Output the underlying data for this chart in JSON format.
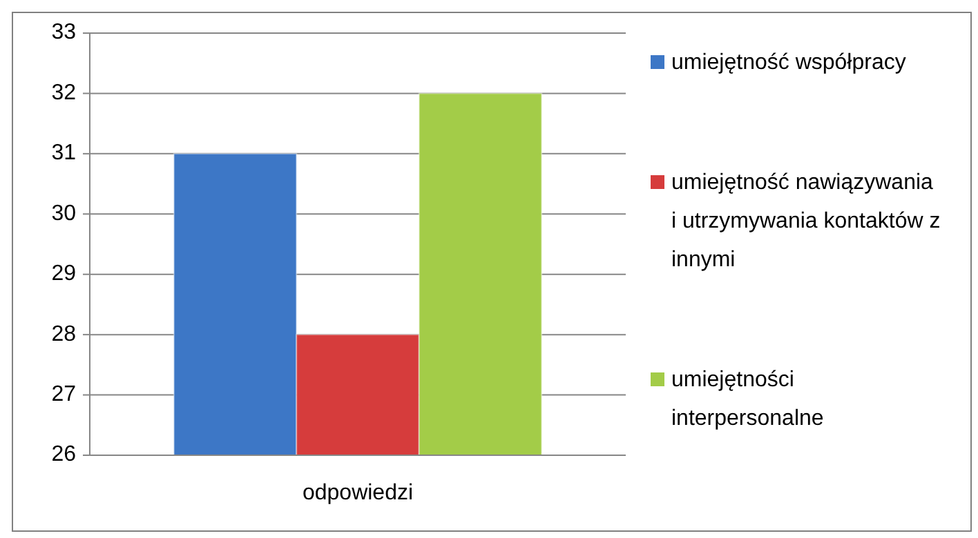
{
  "chart_data": {
    "type": "bar",
    "categories": [
      "odpowiedzi"
    ],
    "series": [
      {
        "name": "umiejętność współpracy",
        "color": "#3d77c6",
        "values": [
          31
        ]
      },
      {
        "name": "umiejętność nawiązywania i utrzymywania kontaktów z innymi",
        "color": "#d63c3c",
        "values": [
          28
        ]
      },
      {
        "name": "umiejętności interpersonalne",
        "color": "#a3cc48",
        "values": [
          32
        ]
      }
    ],
    "ylim": [
      26,
      33
    ],
    "yticks": [
      26,
      27,
      28,
      29,
      30,
      31,
      32,
      33
    ],
    "grid": "y",
    "legend": "right"
  }
}
